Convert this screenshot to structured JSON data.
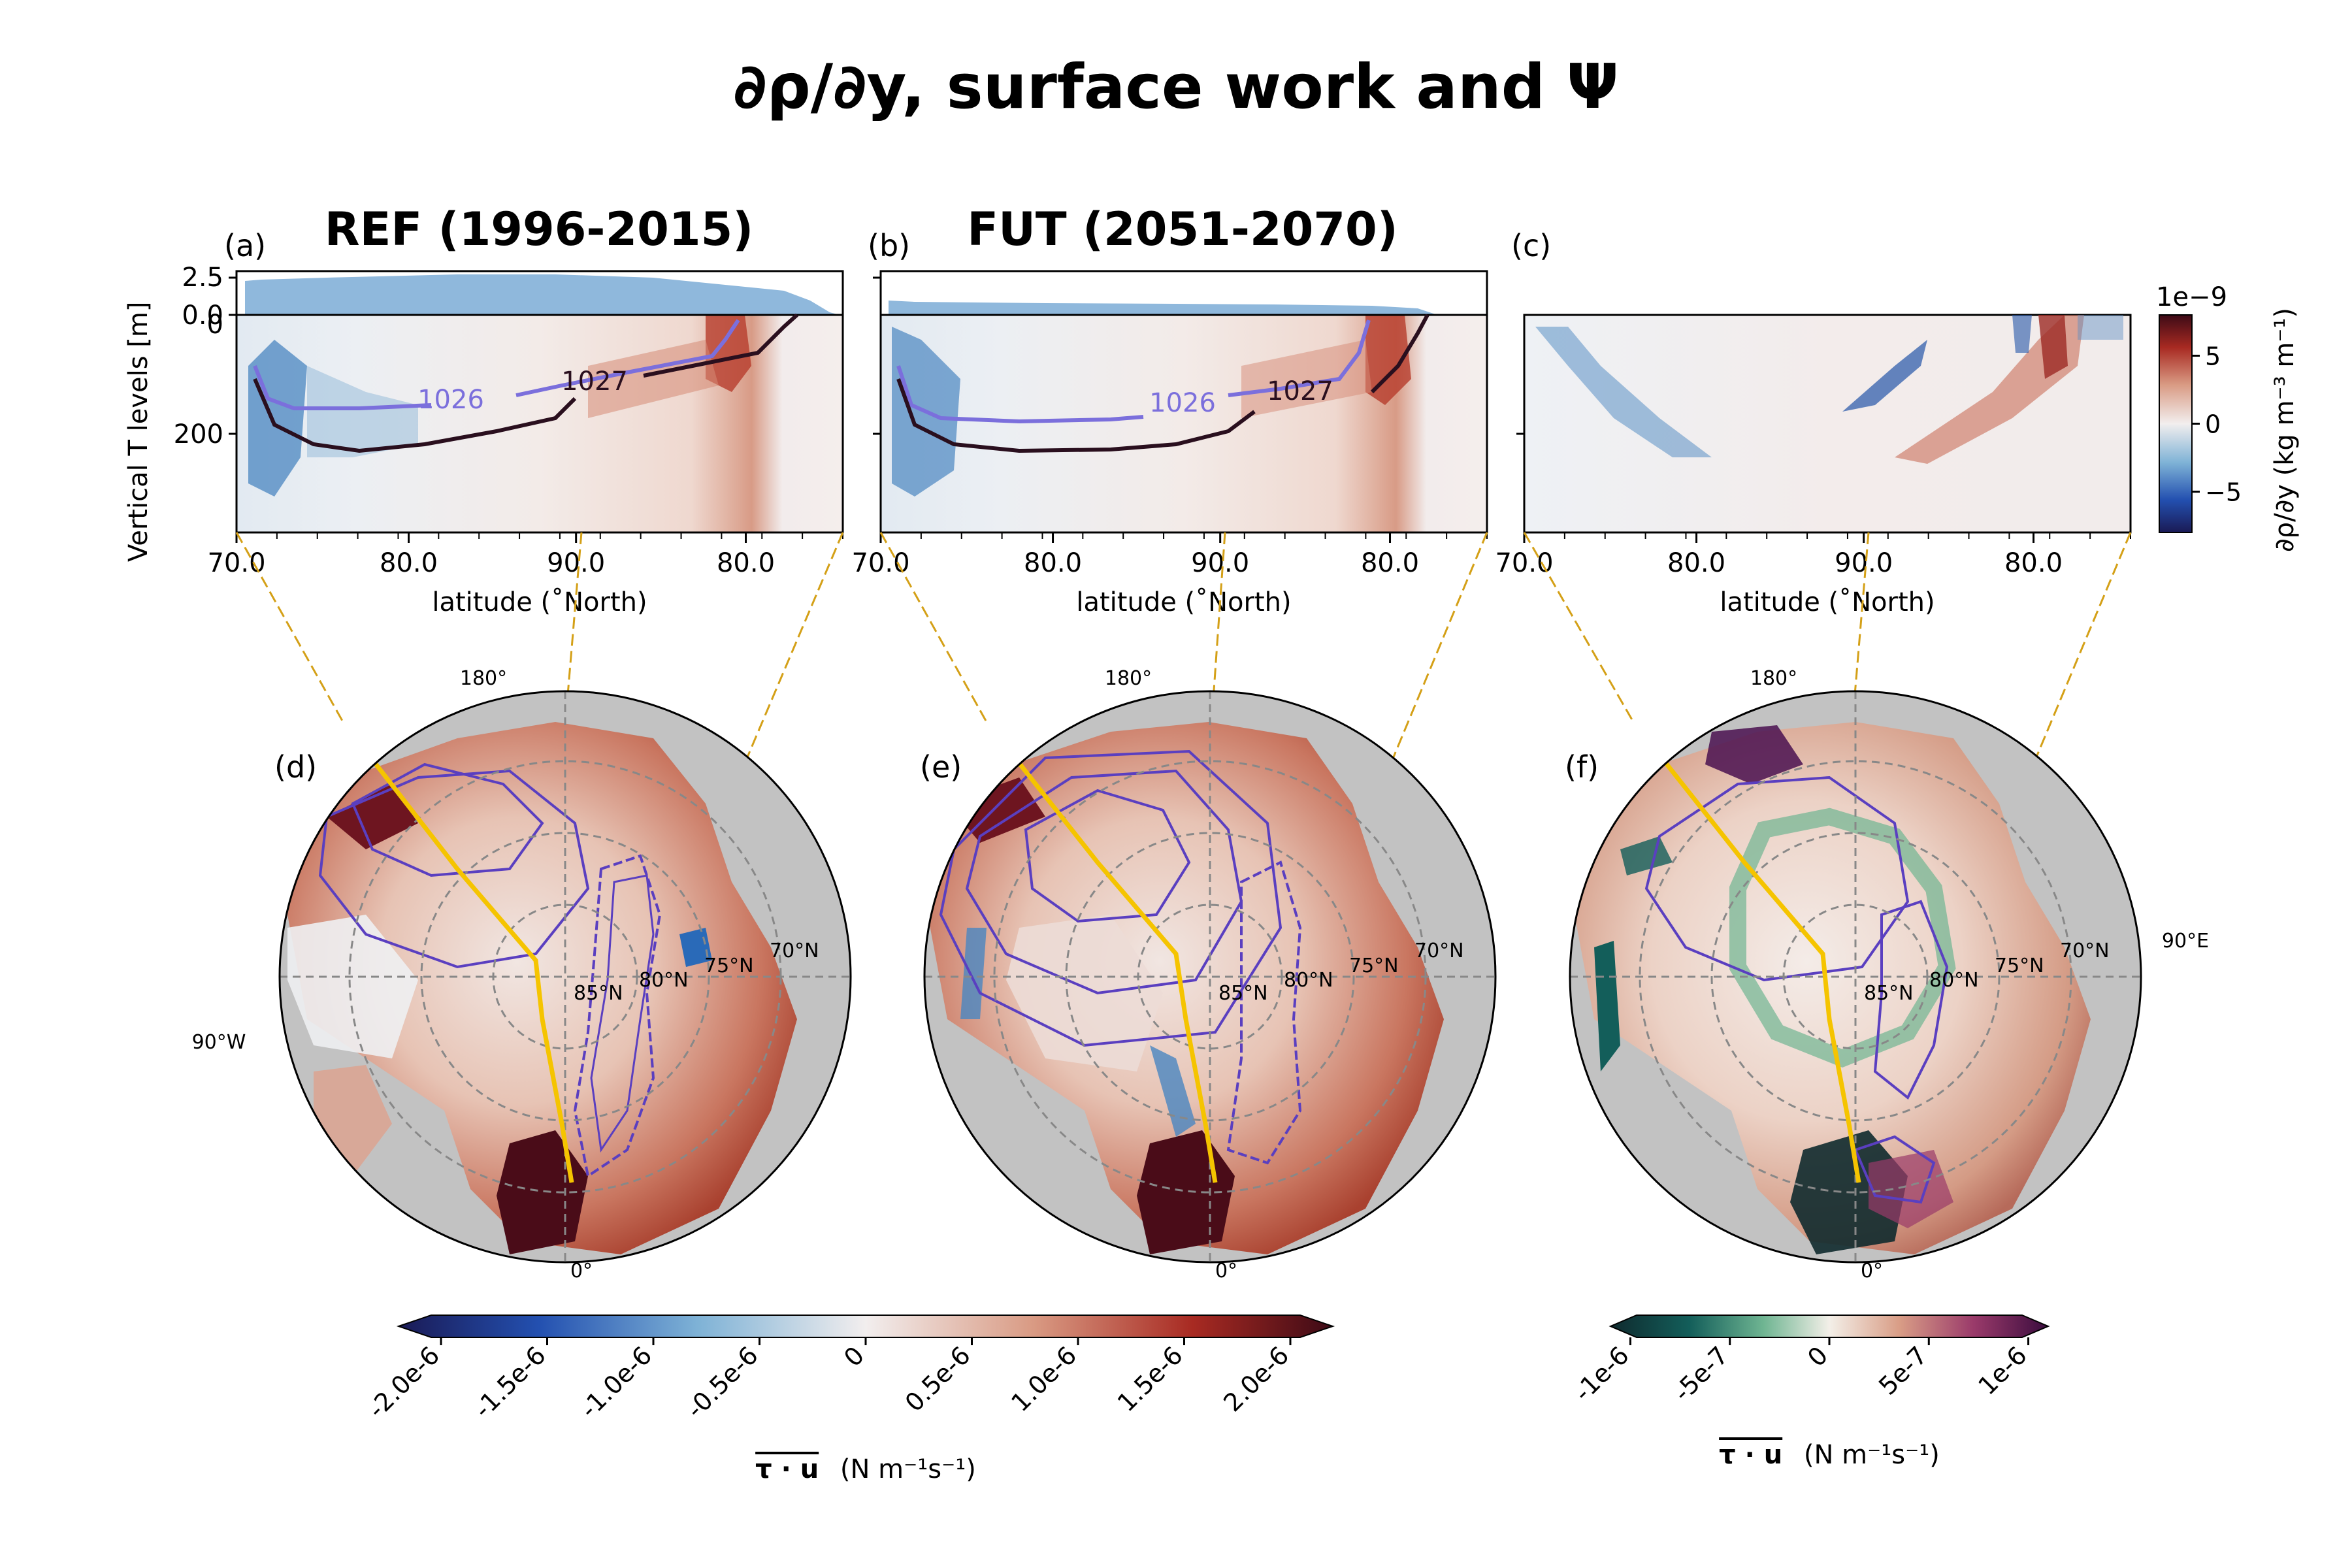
{
  "figure": {
    "title": "∂ρ/∂y, surface work and Ψ"
  },
  "panels": [
    {
      "id": "a",
      "label": "(a)",
      "title": "REF (1996-2015)"
    },
    {
      "id": "b",
      "label": "(b)",
      "title": "FUT (2051-2070)"
    },
    {
      "id": "c",
      "label": "(c)",
      "title": ""
    }
  ],
  "map_panels": [
    {
      "id": "d",
      "label": "(d)"
    },
    {
      "id": "e",
      "label": "(e)"
    },
    {
      "id": "f",
      "label": "(f)"
    }
  ],
  "map_labels": {
    "top": "180°",
    "bottom": "0°",
    "left": "90°W",
    "right": "90°E",
    "lat_85": "85°N",
    "lat_80": "80°N",
    "lat_75": "75°N",
    "lat_70": "70°N"
  },
  "chart_data": [
    {
      "type": "heatmap",
      "panel": "a",
      "ylabel": "Vertical T levels [m]",
      "xlabel": "latitude (˚North)",
      "x_ticklabels": [
        "70.0",
        "80.0",
        "90.0",
        "80.0"
      ],
      "y_ticklabels": [
        "0",
        "200"
      ],
      "upper_axis_ticklabels": [
        "2.5",
        "0.0"
      ],
      "contours": [
        {
          "label": "1026",
          "color": "#7b6fdc",
          "depth": [
            140,
            155,
            158,
            155,
            148,
            138,
            125,
            100,
            70,
            0
          ]
        },
        {
          "label": "1027",
          "color": "#2a0f1e",
          "depth": [
            180,
            220,
            225,
            218,
            200,
            175,
            140,
            110,
            60,
            0
          ]
        }
      ]
    },
    {
      "type": "heatmap",
      "panel": "b",
      "xlabel": "latitude (˚North)",
      "x_ticklabels": [
        "70.0",
        "80.0",
        "90.0",
        "80.0"
      ],
      "contours": [
        {
          "label": "1026",
          "color": "#7b6fdc",
          "depth": [
            155,
            175,
            178,
            177,
            173,
            165,
            150,
            130,
            90,
            0
          ]
        },
        {
          "label": "1027",
          "color": "#2a0f1e",
          "depth": [
            190,
            225,
            230,
            228,
            220,
            200,
            170,
            130,
            80,
            0
          ]
        }
      ]
    },
    {
      "type": "heatmap",
      "panel": "c",
      "xlabel": "latitude (˚North)",
      "x_ticklabels": [
        "70.0",
        "80.0",
        "90.0",
        "80.0"
      ]
    }
  ],
  "colorbar_density": {
    "label": "∂ρ/∂y (kg m⁻³ m⁻¹)",
    "scale_label": "1e−9",
    "ticks": [
      "5",
      "0",
      "−5"
    ],
    "tick_values": [
      5,
      0,
      -5
    ],
    "range": [
      -8,
      8
    ]
  },
  "colorbar_work": {
    "label_main": "τ · u",
    "label_units": "(N m⁻¹s⁻¹)",
    "ticks": [
      "-2.0e-6",
      "-1.5e-6",
      "-1.0e-6",
      "-0.5e-6",
      "0",
      "0.5e-6",
      "1.0e-6",
      "1.5e-6",
      "2.0e-6"
    ],
    "tick_values": [
      -2.0,
      -1.5,
      -1.0,
      -0.5,
      0,
      0.5,
      1.0,
      1.5,
      2.0
    ],
    "range": [
      -2.2,
      2.2
    ]
  },
  "colorbar_diff": {
    "label_main": "τ · u",
    "label_units": "(N m⁻¹s⁻¹)",
    "ticks": [
      "-1e-6",
      "-5e-7",
      "0",
      "5e-7",
      "1e-6"
    ],
    "tick_values": [
      -1.0,
      -0.5,
      0,
      0.5,
      1.0
    ],
    "range": [
      -1.1,
      1.1
    ]
  },
  "colors": {
    "upper_fill": "#8fb8dc",
    "section_line": "#f5c400",
    "connector": "#d4a017",
    "land": "#c2c2c2",
    "contour_purple": "#5a3fc0"
  }
}
